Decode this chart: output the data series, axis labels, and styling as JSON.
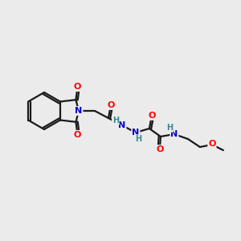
{
  "background_color": "#ebebeb",
  "bond_color": "#1a1a1a",
  "atom_colors": {
    "O": "#ff0000",
    "N": "#0000cc",
    "H": "#3a8a8a",
    "C": "#1a1a1a"
  },
  "figsize": [
    3.0,
    3.0
  ],
  "dpi": 100
}
